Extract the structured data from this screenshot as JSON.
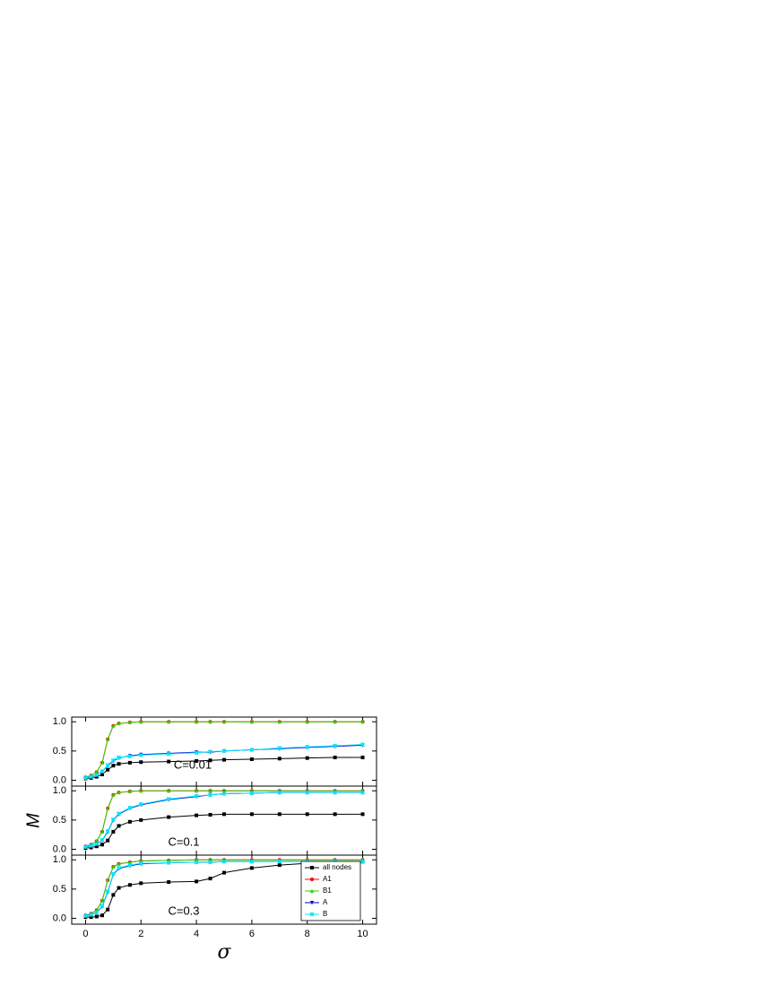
{
  "chart_data": [
    {
      "type": "line",
      "annotation": "C=0.01",
      "x": [
        0,
        0.2,
        0.4,
        0.6,
        0.8,
        1,
        1.2,
        1.6,
        2,
        3,
        4,
        4.5,
        5,
        6,
        7,
        8,
        9,
        10
      ],
      "xlim": [
        -0.5,
        10.5
      ],
      "ylim": [
        -0.1,
        1.08
      ],
      "yticks": [
        {
          "value": 0,
          "label": "0.0"
        },
        {
          "value": 0.5,
          "label": "0.5"
        },
        {
          "value": 1,
          "label": "1.0"
        }
      ],
      "series": [
        {
          "color": "#000000",
          "values": [
            0.03,
            0.04,
            0.06,
            0.1,
            0.18,
            0.25,
            0.28,
            0.3,
            0.31,
            0.32,
            0.33,
            0.34,
            0.35,
            0.36,
            0.37,
            0.38,
            0.39,
            0.39
          ]
        },
        {
          "color": "#ff0000",
          "values": [
            0.05,
            0.08,
            0.14,
            0.3,
            0.7,
            0.93,
            0.97,
            0.99,
            1,
            1,
            1,
            1,
            1,
            1,
            1,
            1,
            1,
            1
          ]
        },
        {
          "color": "#33cc00",
          "values": [
            0.05,
            0.08,
            0.14,
            0.3,
            0.7,
            0.93,
            0.97,
            0.99,
            1,
            1,
            1,
            1,
            1,
            1,
            1,
            1,
            1,
            1
          ]
        },
        {
          "color": "#0000cc",
          "values": [
            0.04,
            0.06,
            0.09,
            0.15,
            0.25,
            0.33,
            0.38,
            0.42,
            0.44,
            0.46,
            0.48,
            0.48,
            0.5,
            0.52,
            0.54,
            0.56,
            0.58,
            0.6
          ]
        },
        {
          "color": "#00e5ff",
          "values": [
            0.04,
            0.06,
            0.09,
            0.15,
            0.26,
            0.34,
            0.39,
            0.41,
            0.43,
            0.45,
            0.47,
            0.49,
            0.5,
            0.52,
            0.55,
            0.57,
            0.59,
            0.61
          ]
        }
      ]
    },
    {
      "type": "line",
      "annotation": "C=0.1",
      "ylabel": "M",
      "x": [
        0,
        0.2,
        0.4,
        0.6,
        0.8,
        1,
        1.2,
        1.6,
        2,
        3,
        4,
        4.5,
        5,
        6,
        7,
        8,
        9,
        10
      ],
      "xlim": [
        -0.5,
        10.5
      ],
      "ylim": [
        -0.1,
        1.08
      ],
      "yticks": [
        {
          "value": 0,
          "label": "0.0"
        },
        {
          "value": 0.5,
          "label": "0.5"
        },
        {
          "value": 1,
          "label": "1.0"
        }
      ],
      "series": [
        {
          "color": "#000000",
          "values": [
            0.02,
            0.03,
            0.05,
            0.08,
            0.15,
            0.3,
            0.4,
            0.47,
            0.5,
            0.55,
            0.58,
            0.59,
            0.6,
            0.6,
            0.6,
            0.6,
            0.6,
            0.6
          ]
        },
        {
          "color": "#ff0000",
          "values": [
            0.05,
            0.08,
            0.14,
            0.3,
            0.7,
            0.93,
            0.97,
            0.99,
            1,
            1,
            1,
            1,
            1,
            1,
            1,
            1,
            1,
            1
          ]
        },
        {
          "color": "#33cc00",
          "values": [
            0.05,
            0.08,
            0.14,
            0.3,
            0.7,
            0.93,
            0.97,
            0.99,
            1,
            1,
            1,
            1,
            1,
            1,
            1,
            1,
            1,
            1
          ]
        },
        {
          "color": "#0000cc",
          "values": [
            0.04,
            0.06,
            0.09,
            0.15,
            0.3,
            0.5,
            0.6,
            0.7,
            0.76,
            0.85,
            0.9,
            0.93,
            0.95,
            0.96,
            0.97,
            0.97,
            0.97,
            0.97
          ]
        },
        {
          "color": "#00e5ff",
          "values": [
            0.04,
            0.06,
            0.09,
            0.16,
            0.31,
            0.51,
            0.61,
            0.71,
            0.77,
            0.86,
            0.91,
            0.93,
            0.95,
            0.96,
            0.97,
            0.97,
            0.97,
            0.97
          ]
        }
      ]
    },
    {
      "type": "line",
      "annotation": "C=0.3",
      "xlabel": "σ",
      "x": [
        0,
        0.2,
        0.4,
        0.6,
        0.8,
        1,
        1.2,
        1.6,
        2,
        3,
        4,
        4.5,
        5,
        6,
        7,
        8,
        9,
        10
      ],
      "xlim": [
        -0.5,
        10.5
      ],
      "ylim": [
        -0.1,
        1.08
      ],
      "xticks": [
        0,
        2,
        4,
        6,
        8,
        10
      ],
      "yticks": [
        {
          "value": 0,
          "label": "0.0"
        },
        {
          "value": 0.5,
          "label": "0.5"
        },
        {
          "value": 1,
          "label": "1.0"
        }
      ],
      "series": [
        {
          "name": "all nodes",
          "color": "#000000",
          "values": [
            0.02,
            0.02,
            0.03,
            0.05,
            0.15,
            0.4,
            0.52,
            0.57,
            0.6,
            0.62,
            0.63,
            0.68,
            0.78,
            0.86,
            0.91,
            0.94,
            0.96,
            0.97
          ]
        },
        {
          "name": "A1",
          "color": "#ff0000",
          "values": [
            0.05,
            0.08,
            0.14,
            0.3,
            0.65,
            0.88,
            0.93,
            0.96,
            0.98,
            0.99,
            1,
            1,
            1,
            1,
            1,
            1,
            1,
            1
          ]
        },
        {
          "name": "B1",
          "color": "#33cc00",
          "values": [
            0.05,
            0.08,
            0.14,
            0.3,
            0.65,
            0.88,
            0.93,
            0.96,
            0.98,
            0.99,
            1,
            1,
            1,
            1,
            1,
            1,
            1,
            1
          ]
        },
        {
          "name": "A",
          "color": "#0000cc",
          "values": [
            0.04,
            0.06,
            0.1,
            0.2,
            0.45,
            0.75,
            0.85,
            0.9,
            0.93,
            0.95,
            0.96,
            0.96,
            0.97,
            0.97,
            0.97,
            0.97,
            0.97,
            0.97
          ]
        },
        {
          "name": "B",
          "color": "#00e5ff",
          "values": [
            0.04,
            0.06,
            0.1,
            0.21,
            0.46,
            0.76,
            0.86,
            0.91,
            0.94,
            0.95,
            0.96,
            0.96,
            0.97,
            0.97,
            0.97,
            0.97,
            0.97,
            0.97
          ]
        }
      ]
    }
  ]
}
